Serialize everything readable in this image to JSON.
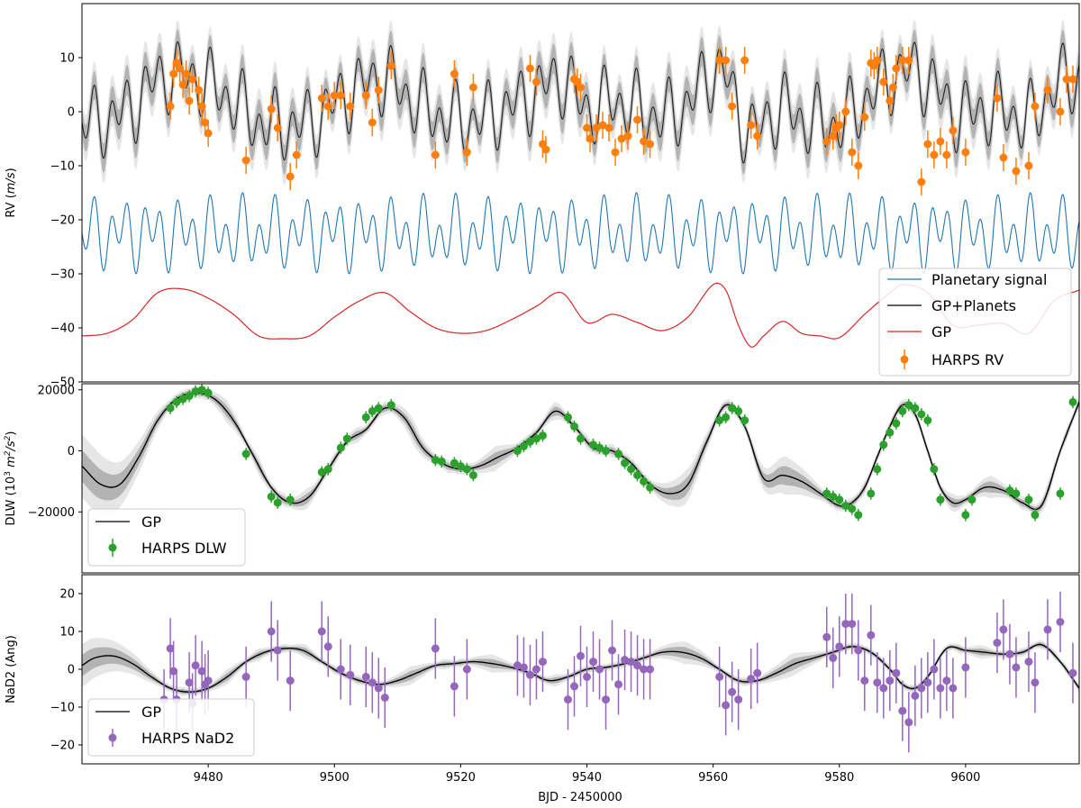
{
  "chart_data": [
    {
      "type": "line",
      "panel": "rv",
      "ylabel_prefix": "RV (",
      "ylabel_unit": "m/s",
      "ylabel_suffix": ")",
      "xlim": [
        9460,
        9618
      ],
      "ylim": [
        -50,
        20
      ],
      "yticks": [
        10,
        0,
        -10,
        -20,
        -30,
        -40,
        -50
      ],
      "ytick_labels": [
        "10",
        "0",
        "−10",
        "−20",
        "−30",
        "−40",
        "−50"
      ],
      "series": [
        {
          "name": "Planetary signal",
          "color": "#1f77b4",
          "kind": "line",
          "model": {
            "offset": -22.5,
            "k1": 4.5,
            "p1": 2.6,
            "k2": 3.0,
            "p2": 4.8
          }
        },
        {
          "name": "GP+Planets",
          "color": "#000000",
          "kind": "line",
          "band": true
        },
        {
          "name": "GP",
          "color": "#d62728",
          "kind": "line",
          "x": [
            9460,
            9464,
            9468,
            9472,
            9476,
            9480,
            9484,
            9488,
            9492,
            9496,
            9500,
            9504,
            9508,
            9512,
            9516,
            9520,
            9524,
            9528,
            9532,
            9536,
            9540,
            9544,
            9548,
            9552,
            9556,
            9560,
            9562,
            9564,
            9566,
            9568,
            9571,
            9574,
            9577,
            9580,
            9584,
            9588,
            9590,
            9594,
            9598,
            9602,
            9606,
            9610,
            9614,
            9618
          ],
          "y": [
            -41.5,
            -41.0,
            -38.5,
            -33.5,
            -32.8,
            -34.5,
            -37.5,
            -41.5,
            -42.0,
            -41.5,
            -38.0,
            -35.0,
            -33.5,
            -37.0,
            -40.0,
            -41.0,
            -40.5,
            -38.5,
            -36.0,
            -33.5,
            -39.0,
            -37.5,
            -39.0,
            -40.5,
            -38.0,
            -32.0,
            -33.0,
            -39.5,
            -43.5,
            -41.5,
            -38.8,
            -41.0,
            -41.5,
            -41.8,
            -37.5,
            -33.5,
            -32.0,
            -33.5,
            -39.5,
            -39.5,
            -39.2,
            -41.0,
            -35.0,
            -33.0
          ]
        },
        {
          "name": "HARPS RV",
          "color": "#ff7f0e",
          "kind": "errorbar",
          "x": [
            9474,
            9474.5,
            9475,
            9475.5,
            9476,
            9476.5,
            9477,
            9477.5,
            9478.5,
            9479,
            9479.5,
            9480,
            9486,
            9490,
            9491,
            9493,
            9494,
            9498,
            9499,
            9500,
            9501,
            9502.5,
            9505,
            9506,
            9507,
            9509,
            9516,
            9519,
            9521,
            9522,
            9531,
            9532,
            9533,
            9533.5,
            9538,
            9538.5,
            9539,
            9540,
            9540.5,
            9541.5,
            9542.5,
            9543.5,
            9544.5,
            9545.5,
            9546.5,
            9548,
            9549,
            9550,
            9561,
            9562,
            9563,
            9565,
            9566,
            9567,
            9578,
            9579,
            9579.5,
            9580,
            9581,
            9582,
            9583,
            9584,
            9585,
            9585.5,
            9586,
            9587,
            9588,
            9588.5,
            9589,
            9590,
            9591,
            9593,
            9594,
            9595,
            9596,
            9597,
            9598,
            9600,
            9605,
            9606,
            9608,
            9610,
            9611,
            9613,
            9615,
            9616,
            9617
          ],
          "y": [
            1,
            7,
            9,
            8,
            5,
            7,
            2,
            6,
            4,
            1,
            -2,
            -4,
            -9,
            0.5,
            -3,
            -12,
            -8,
            2.5,
            1,
            3,
            3,
            1,
            3,
            -2,
            4,
            8.5,
            -8,
            7,
            -7.5,
            4.5,
            8,
            5.5,
            -6,
            -7,
            6,
            5.5,
            4.5,
            -3,
            -5,
            -3,
            -2.5,
            -3,
            -7.5,
            -5,
            -4.5,
            -1.5,
            -5.5,
            -6,
            9.5,
            9.5,
            1,
            9.5,
            -2.5,
            -4.5,
            -5.5,
            -4.5,
            -3,
            -2.5,
            0,
            -7.5,
            -10,
            -1,
            9,
            8.5,
            9.5,
            5.5,
            2,
            4.5,
            8,
            9.5,
            9.5,
            -13,
            -6,
            -8,
            -5.5,
            -8,
            -3.5,
            -7.5,
            2.5,
            -8.5,
            -11,
            -10,
            1,
            4,
            0,
            6,
            6
          ],
          "yerr": 2.5
        }
      ],
      "legend": {
        "loc": "lower right",
        "entries": [
          "Planetary signal",
          "GP+Planets",
          "GP",
          "HARPS RV"
        ]
      }
    },
    {
      "type": "line",
      "panel": "dlw",
      "ylabel_prefix": "DLW (10",
      "ylabel_sup1": "3",
      "ylabel_mid": " m",
      "ylabel_sup2": "2",
      "ylabel_mid2": "/s",
      "ylabel_sup3": "2",
      "ylabel_suffix": ")",
      "xlim": [
        9460,
        9618
      ],
      "ylim": [
        -40000,
        22000
      ],
      "yticks": [
        20000,
        0,
        -20000
      ],
      "ytick_labels": [
        "20000",
        "0",
        "−20000"
      ],
      "series": [
        {
          "name": "GP",
          "color": "#000000",
          "kind": "line",
          "x": [
            9460,
            9463,
            9466,
            9469,
            9472,
            9475,
            9478,
            9481,
            9484,
            9487,
            9490,
            9493,
            9496,
            9499,
            9502,
            9505,
            9508,
            9511,
            9514,
            9517,
            9520,
            9523,
            9526,
            9529,
            9532,
            9535,
            9538,
            9541,
            9544,
            9547,
            9550,
            9553,
            9556,
            9559,
            9562,
            9565,
            9568,
            9571,
            9574,
            9577,
            9580,
            9582,
            9584,
            9586,
            9588,
            9590,
            9592,
            9594,
            9596,
            9598,
            9600,
            9603,
            9606,
            9609,
            9612,
            9615,
            9618
          ],
          "y": [
            -5000,
            -11000,
            -11000,
            -2000,
            10000,
            17000,
            19000,
            17000,
            10000,
            -1000,
            -12000,
            -17000,
            -15000,
            -6000,
            3000,
            7000,
            14000,
            11000,
            1000,
            -4000,
            -6000,
            -5000,
            -2000,
            1000,
            6000,
            13000,
            8000,
            1000,
            0,
            -4000,
            -11000,
            -14000,
            -11000,
            3000,
            15000,
            8000,
            -9000,
            -8000,
            -10000,
            -14000,
            -18000,
            -17000,
            -12000,
            -2000,
            8000,
            15000,
            12000,
            0,
            -12000,
            -17000,
            -16000,
            -12000,
            -13000,
            -17000,
            -18000,
            0,
            16000
          ],
          "band": true
        },
        {
          "name": "HARPS DLW",
          "color": "#2ca02c",
          "kind": "errorbar",
          "x": [
            9474,
            9475,
            9476,
            9477,
            9478,
            9479,
            9480,
            9486,
            9490,
            9491,
            9493,
            9498,
            9499,
            9501,
            9502,
            9505,
            9506,
            9507,
            9509,
            9516,
            9517,
            9519,
            9520,
            9521,
            9522,
            9529,
            9530,
            9531,
            9532,
            9533,
            9537,
            9538,
            9539,
            9541,
            9542,
            9543,
            9545,
            9546,
            9547,
            9548,
            9549,
            9550,
            9561,
            9562,
            9563,
            9564,
            9565,
            9578,
            9579,
            9580,
            9581,
            9582,
            9583,
            9585,
            9586,
            9587,
            9588,
            9589,
            9590,
            9591,
            9592,
            9593,
            9594,
            9595,
            9596,
            9600,
            9601,
            9607,
            9608,
            9610,
            9611,
            9615,
            9617
          ],
          "y": [
            14000,
            16000,
            17000,
            18000,
            19500,
            20000,
            19000,
            -1000,
            -15000,
            -17000,
            -16000,
            -7000,
            -6000,
            1000,
            4000,
            11000,
            13000,
            14000,
            15000,
            -3000,
            -3500,
            -4000,
            -5000,
            -6000,
            -8000,
            0,
            1500,
            3000,
            4000,
            5000,
            11000,
            8000,
            4000,
            2000,
            1000,
            0,
            -1000,
            -4000,
            -6000,
            -8000,
            -10000,
            -12000,
            10000,
            11000,
            14000,
            13000,
            10000,
            -14000,
            -15000,
            -16000,
            -18000,
            -19000,
            -21000,
            -14000,
            -6000,
            2000,
            6000,
            9000,
            13000,
            15000,
            14000,
            12000,
            10000,
            -6000,
            -16000,
            -21000,
            -16000,
            -13000,
            -14000,
            -16000,
            -21000,
            -14000,
            16000
          ],
          "yerr": 2000
        }
      ],
      "legend": {
        "loc": "lower left",
        "entries": [
          "GP",
          "HARPS DLW"
        ]
      }
    },
    {
      "type": "line",
      "panel": "nad2",
      "ylabel": "NaD2 (Ang)",
      "xlabel": "BJD - 2450000",
      "xlim": [
        9460,
        9618
      ],
      "ylim": [
        -25,
        25
      ],
      "xticks": [
        9480,
        9500,
        9520,
        9540,
        9560,
        9580,
        9600
      ],
      "xtick_labels": [
        "9480",
        "9500",
        "9520",
        "9540",
        "9560",
        "9580",
        "9600"
      ],
      "yticks": [
        20,
        10,
        0,
        -10,
        -20
      ],
      "ytick_labels": [
        "20",
        "10",
        "0",
        "−10",
        "−20"
      ],
      "series": [
        {
          "name": "GP",
          "color": "#000000",
          "kind": "line",
          "x": [
            9460,
            9462,
            9465,
            9468,
            9471,
            9474,
            9477,
            9480,
            9483,
            9486,
            9489,
            9492,
            9495,
            9498,
            9501,
            9504,
            9507,
            9510,
            9513,
            9516,
            9519,
            9522,
            9525,
            9528,
            9531,
            9534,
            9537,
            9540,
            9543,
            9546,
            9549,
            9552,
            9555,
            9558,
            9561,
            9564,
            9567,
            9570,
            9573,
            9576,
            9579,
            9582,
            9585,
            9588,
            9590,
            9592,
            9594,
            9597,
            9600,
            9603,
            9606,
            9609,
            9612,
            9615,
            9618
          ],
          "y": [
            1,
            3,
            3.5,
            1.5,
            -2,
            -5,
            -6,
            -5,
            -2,
            2,
            4.5,
            5.5,
            5,
            2,
            -1,
            -3,
            -4,
            -3,
            -1,
            1,
            1.5,
            2,
            1.5,
            0.5,
            -1,
            -3,
            -2,
            0,
            0.5,
            1.5,
            3,
            4.5,
            4.5,
            3,
            0,
            -3,
            -3,
            -1,
            1.5,
            3,
            4.5,
            6,
            4.5,
            0,
            -4,
            -5,
            -2,
            5.5,
            5,
            4.5,
            4,
            4.5,
            6.5,
            2,
            -5
          ],
          "band": true
        },
        {
          "name": "HARPS NaD2",
          "color": "#9467bd",
          "kind": "errorbar",
          "x": [
            9473,
            9474,
            9474.5,
            9475,
            9477,
            9477.5,
            9478,
            9479,
            9479.5,
            9480,
            9486,
            9490,
            9491,
            9493,
            9498,
            9499,
            9501,
            9502.5,
            9505,
            9506,
            9507,
            9508,
            9516,
            9519,
            9521,
            9529,
            9530,
            9531,
            9532,
            9533,
            9537,
            9538,
            9539,
            9540,
            9541,
            9542,
            9543,
            9544,
            9545,
            9546,
            9547,
            9548,
            9549,
            9550,
            9561,
            9562,
            9563,
            9564,
            9566,
            9567,
            9578,
            9579,
            9580,
            9581,
            9582,
            9583,
            9584,
            9585,
            9586,
            9587,
            9588,
            9589,
            9590,
            9591,
            9592,
            9593,
            9594,
            9595,
            9596,
            9597,
            9598,
            9600,
            9605,
            9606,
            9607,
            9608,
            9610,
            9611,
            9613,
            9615,
            9617
          ],
          "y": [
            -8,
            5.5,
            -0.5,
            -8,
            -3.5,
            -9,
            1,
            -0.5,
            -4,
            -3,
            -2,
            10,
            5,
            -3,
            10,
            6,
            0,
            -1.5,
            -2,
            -3.5,
            -5,
            -7.5,
            5.5,
            -4.5,
            0,
            1,
            0.5,
            -1.5,
            0,
            2,
            -8,
            -4.5,
            3.5,
            -2,
            2,
            0,
            -8,
            5,
            -4,
            2.5,
            2,
            1,
            0,
            0,
            -2,
            -9.5,
            -6,
            -8,
            -2.5,
            -1,
            8.5,
            3,
            6,
            12,
            12,
            5,
            -3,
            9,
            -3.5,
            -5,
            -3,
            -1,
            -11,
            -14,
            -7,
            -5,
            -3.5,
            0,
            -5,
            -3,
            -5,
            0.5,
            7,
            10.5,
            4,
            0.5,
            2,
            -3.5,
            10.5,
            12.5,
            -1
          ],
          "yerr": 8
        }
      ],
      "legend": {
        "loc": "lower left",
        "entries": [
          "GP",
          "HARPS NaD2"
        ]
      }
    }
  ]
}
